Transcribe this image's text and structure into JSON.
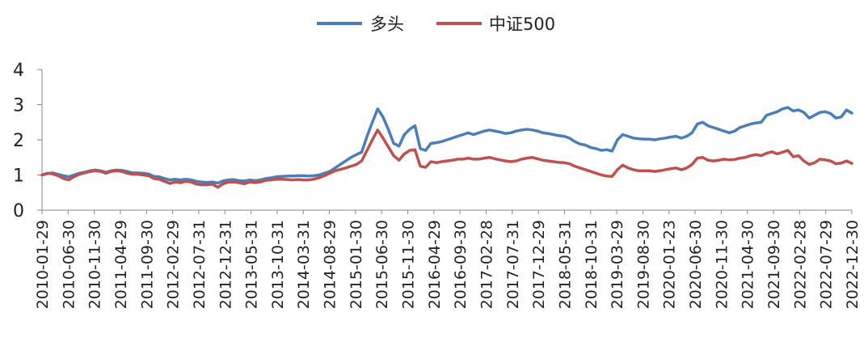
{
  "chart_data": {
    "type": "line",
    "title": "",
    "xlabel": "",
    "ylabel": "",
    "ylim": [
      0,
      4
    ],
    "yticks": [
      0,
      1,
      2,
      3,
      4
    ],
    "grid": false,
    "legend_position": "top-center",
    "x_tick_labels": [
      "2010-01-29",
      "2010-06-30",
      "2010-11-30",
      "2011-04-29",
      "2011-09-30",
      "2012-02-29",
      "2012-07-31",
      "2012-12-31",
      "2013-05-31",
      "2013-10-31",
      "2014-03-31",
      "2014-08-29",
      "2015-01-30",
      "2015-06-30",
      "2015-11-30",
      "2016-04-29",
      "2016-09-30",
      "2017-02-28",
      "2017-07-31",
      "2017-12-29",
      "2018-05-31",
      "2018-10-31",
      "2019-03-29",
      "2019-08-30",
      "2020-01-23",
      "2020-06-30",
      "2020-11-30",
      "2021-04-30",
      "2021-09-30",
      "2022-02-28",
      "2022-07-29",
      "2022-12-30"
    ],
    "series": [
      {
        "name": "多头",
        "color": "#4a7ebb",
        "values": [
          1.0,
          1.04,
          1.06,
          1.02,
          0.98,
          0.95,
          1.0,
          1.05,
          1.08,
          1.12,
          1.14,
          1.12,
          1.08,
          1.12,
          1.14,
          1.13,
          1.1,
          1.06,
          1.06,
          1.05,
          1.03,
          0.96,
          0.95,
          0.9,
          0.86,
          0.88,
          0.86,
          0.88,
          0.86,
          0.82,
          0.8,
          0.79,
          0.8,
          0.77,
          0.83,
          0.86,
          0.87,
          0.84,
          0.83,
          0.86,
          0.84,
          0.86,
          0.9,
          0.92,
          0.95,
          0.96,
          0.97,
          0.97,
          0.98,
          0.98,
          0.97,
          0.98,
          1.0,
          1.05,
          1.1,
          1.2,
          1.3,
          1.4,
          1.5,
          1.58,
          1.65,
          2.1,
          2.5,
          2.88,
          2.65,
          2.3,
          1.9,
          1.82,
          2.15,
          2.3,
          2.4,
          1.75,
          1.7,
          1.9,
          1.92,
          1.95,
          2.0,
          2.05,
          2.1,
          2.15,
          2.2,
          2.15,
          2.2,
          2.25,
          2.28,
          2.25,
          2.22,
          2.18,
          2.2,
          2.25,
          2.28,
          2.3,
          2.28,
          2.25,
          2.2,
          2.18,
          2.15,
          2.12,
          2.1,
          2.05,
          1.95,
          1.88,
          1.85,
          1.78,
          1.75,
          1.7,
          1.72,
          1.68,
          2.0,
          2.15,
          2.1,
          2.05,
          2.03,
          2.02,
          2.02,
          2.0,
          2.03,
          2.05,
          2.08,
          2.1,
          2.05,
          2.1,
          2.2,
          2.45,
          2.5,
          2.4,
          2.35,
          2.3,
          2.25,
          2.2,
          2.25,
          2.35,
          2.4,
          2.45,
          2.48,
          2.5,
          2.7,
          2.75,
          2.8,
          2.88,
          2.92,
          2.82,
          2.85,
          2.78,
          2.62,
          2.7,
          2.78,
          2.8,
          2.75,
          2.62,
          2.65,
          2.85,
          2.76
        ]
      },
      {
        "name": "中证500",
        "color": "#c0504d",
        "values": [
          1.0,
          1.05,
          1.03,
          0.98,
          0.9,
          0.86,
          0.95,
          1.02,
          1.06,
          1.1,
          1.12,
          1.1,
          1.05,
          1.1,
          1.12,
          1.1,
          1.05,
          1.02,
          1.02,
          1.0,
          0.98,
          0.9,
          0.88,
          0.82,
          0.76,
          0.8,
          0.78,
          0.82,
          0.8,
          0.74,
          0.72,
          0.72,
          0.74,
          0.65,
          0.75,
          0.8,
          0.8,
          0.78,
          0.75,
          0.8,
          0.78,
          0.8,
          0.85,
          0.86,
          0.88,
          0.88,
          0.87,
          0.86,
          0.87,
          0.86,
          0.86,
          0.88,
          0.92,
          0.98,
          1.05,
          1.12,
          1.16,
          1.2,
          1.25,
          1.3,
          1.4,
          1.7,
          2.0,
          2.28,
          2.05,
          1.8,
          1.55,
          1.42,
          1.6,
          1.7,
          1.72,
          1.25,
          1.22,
          1.38,
          1.35,
          1.38,
          1.4,
          1.42,
          1.45,
          1.45,
          1.48,
          1.45,
          1.45,
          1.48,
          1.5,
          1.46,
          1.43,
          1.4,
          1.38,
          1.4,
          1.45,
          1.48,
          1.5,
          1.46,
          1.42,
          1.4,
          1.38,
          1.36,
          1.35,
          1.32,
          1.25,
          1.2,
          1.15,
          1.1,
          1.05,
          1.0,
          0.97,
          0.96,
          1.15,
          1.28,
          1.2,
          1.15,
          1.12,
          1.12,
          1.12,
          1.1,
          1.12,
          1.15,
          1.18,
          1.2,
          1.15,
          1.2,
          1.3,
          1.48,
          1.5,
          1.42,
          1.4,
          1.42,
          1.45,
          1.43,
          1.44,
          1.48,
          1.5,
          1.55,
          1.58,
          1.55,
          1.62,
          1.66,
          1.6,
          1.65,
          1.7,
          1.52,
          1.55,
          1.4,
          1.3,
          1.35,
          1.45,
          1.43,
          1.4,
          1.32,
          1.34,
          1.4,
          1.33
        ]
      }
    ]
  }
}
